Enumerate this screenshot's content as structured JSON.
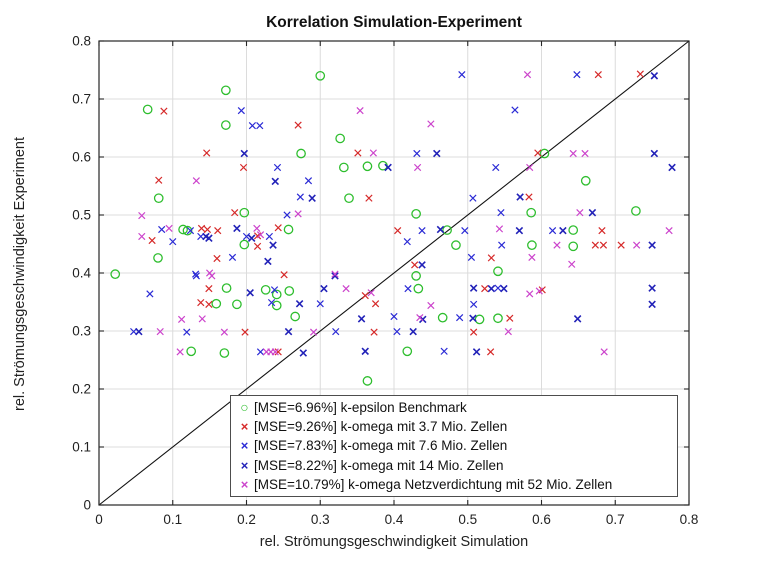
{
  "chart_data": {
    "type": "scatter",
    "title": "Korrelation Simulation-Experiment",
    "xlabel": "rel. Strömungsgeschwindigkeit Simulation",
    "ylabel": "rel. Strömungsgeschwindigkeit Experiment",
    "xlim": [
      0,
      0.8
    ],
    "ylim": [
      0,
      0.8
    ],
    "x_ticks": [
      "0",
      "0.1",
      "0.2",
      "0.3",
      "0.4",
      "0.5",
      "0.6",
      "0.7",
      "0.8"
    ],
    "y_ticks": [
      "0",
      "0.1",
      "0.2",
      "0.3",
      "0.4",
      "0.5",
      "0.6",
      "0.7",
      "0.8"
    ],
    "grid": true,
    "grid_color": "#dcdcdc",
    "axis_color": "#262626",
    "identity_line": true,
    "legend_position": "south-east-inside",
    "series": [
      {
        "label": "[MSE=6.96%] k-epsilon Benchmark",
        "marker": "o",
        "color": "#2ebe2e",
        "line_width": 1.3,
        "points": [
          [
            0.3,
            0.74
          ],
          [
            0.172,
            0.715
          ],
          [
            0.066,
            0.682
          ],
          [
            0.172,
            0.655
          ],
          [
            0.327,
            0.632
          ],
          [
            0.274,
            0.606
          ],
          [
            0.332,
            0.582
          ],
          [
            0.364,
            0.584
          ],
          [
            0.385,
            0.585
          ],
          [
            0.081,
            0.529
          ],
          [
            0.339,
            0.529
          ],
          [
            0.197,
            0.504
          ],
          [
            0.114,
            0.475
          ],
          [
            0.12,
            0.473
          ],
          [
            0.257,
            0.475
          ],
          [
            0.08,
            0.426
          ],
          [
            0.197,
            0.449
          ],
          [
            0.022,
            0.398
          ],
          [
            0.43,
            0.502
          ],
          [
            0.604,
            0.606
          ],
          [
            0.66,
            0.559
          ],
          [
            0.586,
            0.504
          ],
          [
            0.728,
            0.507
          ],
          [
            0.472,
            0.474
          ],
          [
            0.643,
            0.474
          ],
          [
            0.484,
            0.448
          ],
          [
            0.587,
            0.448
          ],
          [
            0.643,
            0.446
          ],
          [
            0.541,
            0.403
          ],
          [
            0.43,
            0.395
          ],
          [
            0.173,
            0.374
          ],
          [
            0.226,
            0.371
          ],
          [
            0.241,
            0.363
          ],
          [
            0.258,
            0.369
          ],
          [
            0.159,
            0.347
          ],
          [
            0.187,
            0.346
          ],
          [
            0.241,
            0.344
          ],
          [
            0.266,
            0.325
          ],
          [
            0.125,
            0.265
          ],
          [
            0.17,
            0.262
          ],
          [
            0.364,
            0.214
          ],
          [
            0.433,
            0.373
          ],
          [
            0.466,
            0.323
          ],
          [
            0.516,
            0.32
          ],
          [
            0.541,
            0.322
          ],
          [
            0.418,
            0.265
          ]
        ]
      },
      {
        "label": "[MSE=9.26%] k-omega mit 3.7 Mio. Zellen",
        "marker": "x",
        "color": "#d62a2a",
        "line_width": 1.2,
        "points": [
          [
            0.088,
            0.679
          ],
          [
            0.27,
            0.655
          ],
          [
            0.146,
            0.607
          ],
          [
            0.351,
            0.607
          ],
          [
            0.196,
            0.582
          ],
          [
            0.081,
            0.56
          ],
          [
            0.366,
            0.529
          ],
          [
            0.184,
            0.504
          ],
          [
            0.072,
            0.456
          ],
          [
            0.139,
            0.477
          ],
          [
            0.147,
            0.475
          ],
          [
            0.161,
            0.473
          ],
          [
            0.215,
            0.446
          ],
          [
            0.243,
            0.478
          ],
          [
            0.215,
            0.464
          ],
          [
            0.16,
            0.425
          ],
          [
            0.677,
            0.742
          ],
          [
            0.734,
            0.743
          ],
          [
            0.595,
            0.607
          ],
          [
            0.583,
            0.531
          ],
          [
            0.405,
            0.473
          ],
          [
            0.682,
            0.473
          ],
          [
            0.673,
            0.448
          ],
          [
            0.684,
            0.448
          ],
          [
            0.708,
            0.448
          ],
          [
            0.532,
            0.426
          ],
          [
            0.428,
            0.414
          ],
          [
            0.251,
            0.397
          ],
          [
            0.149,
            0.373
          ],
          [
            0.361,
            0.361
          ],
          [
            0.601,
            0.371
          ],
          [
            0.523,
            0.373
          ],
          [
            0.138,
            0.349
          ],
          [
            0.149,
            0.346
          ],
          [
            0.375,
            0.347
          ],
          [
            0.198,
            0.298
          ],
          [
            0.373,
            0.298
          ],
          [
            0.508,
            0.298
          ],
          [
            0.243,
            0.264
          ],
          [
            0.531,
            0.264
          ],
          [
            0.557,
            0.322
          ]
        ]
      },
      {
        "label": "[MSE=7.83%] k-omega mit 7.6 Mio. Zellen",
        "marker": "x",
        "color": "#2b2bd5",
        "line_width": 1.2,
        "points": [
          [
            0.193,
            0.68
          ],
          [
            0.208,
            0.654
          ],
          [
            0.218,
            0.654
          ],
          [
            0.242,
            0.582
          ],
          [
            0.284,
            0.559
          ],
          [
            0.273,
            0.531
          ],
          [
            0.255,
            0.5
          ],
          [
            0.085,
            0.475
          ],
          [
            0.124,
            0.473
          ],
          [
            0.1,
            0.454
          ],
          [
            0.138,
            0.463
          ],
          [
            0.2,
            0.463
          ],
          [
            0.231,
            0.463
          ],
          [
            0.181,
            0.427
          ],
          [
            0.131,
            0.398
          ],
          [
            0.492,
            0.742
          ],
          [
            0.648,
            0.742
          ],
          [
            0.564,
            0.681
          ],
          [
            0.431,
            0.606
          ],
          [
            0.538,
            0.582
          ],
          [
            0.507,
            0.529
          ],
          [
            0.545,
            0.504
          ],
          [
            0.438,
            0.473
          ],
          [
            0.496,
            0.473
          ],
          [
            0.615,
            0.473
          ],
          [
            0.418,
            0.454
          ],
          [
            0.546,
            0.448
          ],
          [
            0.505,
            0.427
          ],
          [
            0.069,
            0.364
          ],
          [
            0.238,
            0.371
          ],
          [
            0.234,
            0.349
          ],
          [
            0.3,
            0.347
          ],
          [
            0.047,
            0.299
          ],
          [
            0.119,
            0.298
          ],
          [
            0.321,
            0.299
          ],
          [
            0.219,
            0.264
          ],
          [
            0.419,
            0.373
          ],
          [
            0.541,
            0.374
          ],
          [
            0.508,
            0.346
          ],
          [
            0.4,
            0.325
          ],
          [
            0.489,
            0.323
          ],
          [
            0.404,
            0.299
          ],
          [
            0.468,
            0.265
          ],
          [
            0.132,
            0.395
          ]
        ]
      },
      {
        "label": "[MSE=8.22%] k-omega mit 14 Mio. Zellen",
        "marker": "x",
        "color": "#2222b8",
        "line_width": 1.6,
        "points": [
          [
            0.197,
            0.606
          ],
          [
            0.392,
            0.582
          ],
          [
            0.239,
            0.558
          ],
          [
            0.289,
            0.529
          ],
          [
            0.187,
            0.477
          ],
          [
            0.145,
            0.463
          ],
          [
            0.149,
            0.46
          ],
          [
            0.207,
            0.46
          ],
          [
            0.236,
            0.448
          ],
          [
            0.229,
            0.42
          ],
          [
            0.753,
            0.74
          ],
          [
            0.458,
            0.606
          ],
          [
            0.753,
            0.606
          ],
          [
            0.777,
            0.582
          ],
          [
            0.571,
            0.531
          ],
          [
            0.669,
            0.504
          ],
          [
            0.463,
            0.475
          ],
          [
            0.57,
            0.473
          ],
          [
            0.629,
            0.473
          ],
          [
            0.75,
            0.448
          ],
          [
            0.438,
            0.414
          ],
          [
            0.205,
            0.366
          ],
          [
            0.305,
            0.373
          ],
          [
            0.272,
            0.347
          ],
          [
            0.356,
            0.321
          ],
          [
            0.054,
            0.299
          ],
          [
            0.257,
            0.299
          ],
          [
            0.277,
            0.262
          ],
          [
            0.361,
            0.265
          ],
          [
            0.508,
            0.374
          ],
          [
            0.532,
            0.373
          ],
          [
            0.549,
            0.373
          ],
          [
            0.75,
            0.346
          ],
          [
            0.75,
            0.374
          ],
          [
            0.439,
            0.32
          ],
          [
            0.507,
            0.322
          ],
          [
            0.649,
            0.321
          ],
          [
            0.426,
            0.299
          ],
          [
            0.512,
            0.264
          ],
          [
            0.32,
            0.395
          ]
        ]
      },
      {
        "label": "[MSE=10.79%] k-omega Netzverdichtung mit 52 Mio. Zellen",
        "marker": "x",
        "color": "#cc44cc",
        "line_width": 1.2,
        "points": [
          [
            0.354,
            0.68
          ],
          [
            0.372,
            0.607
          ],
          [
            0.132,
            0.559
          ],
          [
            0.058,
            0.499
          ],
          [
            0.27,
            0.502
          ],
          [
            0.095,
            0.477
          ],
          [
            0.214,
            0.477
          ],
          [
            0.219,
            0.466
          ],
          [
            0.058,
            0.463
          ],
          [
            0.15,
            0.4
          ],
          [
            0.153,
            0.395
          ],
          [
            0.581,
            0.742
          ],
          [
            0.45,
            0.657
          ],
          [
            0.643,
            0.606
          ],
          [
            0.659,
            0.606
          ],
          [
            0.432,
            0.582
          ],
          [
            0.584,
            0.582
          ],
          [
            0.652,
            0.504
          ],
          [
            0.543,
            0.476
          ],
          [
            0.773,
            0.473
          ],
          [
            0.621,
            0.448
          ],
          [
            0.729,
            0.448
          ],
          [
            0.587,
            0.427
          ],
          [
            0.641,
            0.415
          ],
          [
            0.335,
            0.373
          ],
          [
            0.369,
            0.366
          ],
          [
            0.584,
            0.364
          ],
          [
            0.597,
            0.369
          ],
          [
            0.45,
            0.344
          ],
          [
            0.112,
            0.32
          ],
          [
            0.14,
            0.321
          ],
          [
            0.435,
            0.323
          ],
          [
            0.555,
            0.299
          ],
          [
            0.083,
            0.299
          ],
          [
            0.17,
            0.298
          ],
          [
            0.291,
            0.298
          ],
          [
            0.11,
            0.264
          ],
          [
            0.227,
            0.264
          ],
          [
            0.233,
            0.264
          ],
          [
            0.239,
            0.264
          ],
          [
            0.685,
            0.264
          ],
          [
            0.32,
            0.398
          ]
        ]
      }
    ]
  }
}
